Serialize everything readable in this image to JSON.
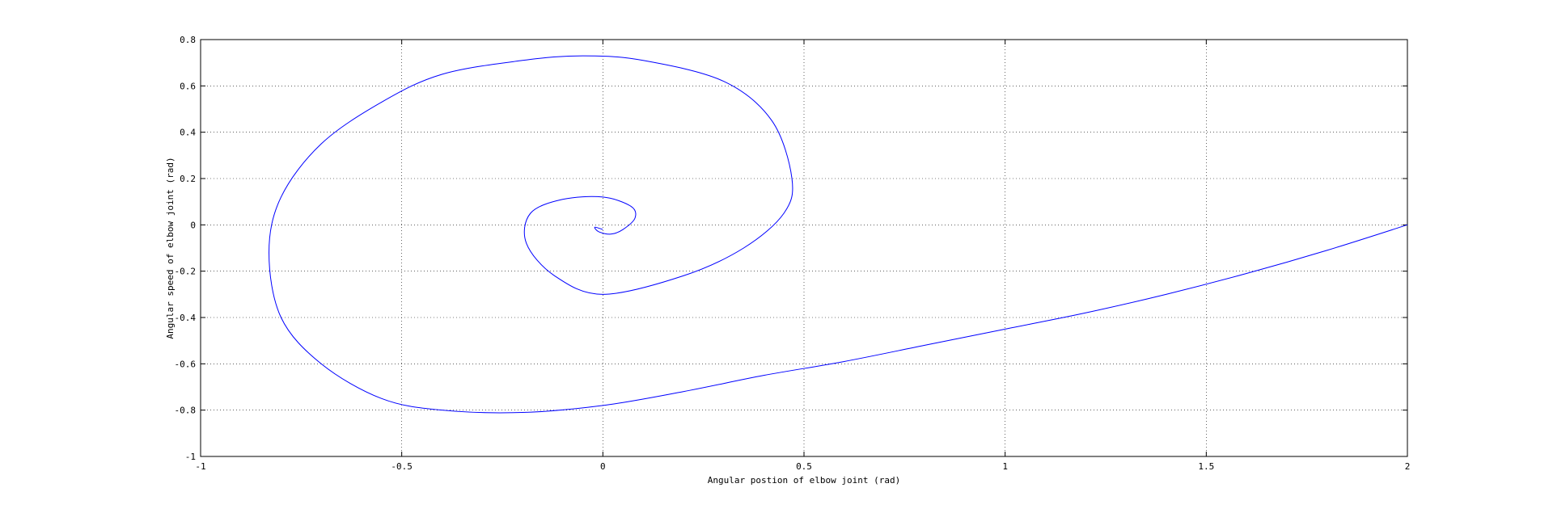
{
  "chart_data": {
    "type": "line",
    "title": "",
    "xlabel": "Angular postion of elbow joint (rad)",
    "ylabel": "Angular speed of elbow joint (rad)",
    "xlim": [
      -1,
      2
    ],
    "ylim": [
      -1,
      0.8
    ],
    "xticks": [
      -1,
      -0.5,
      0,
      0.5,
      1,
      1.5,
      2
    ],
    "xtick_labels": [
      "-1",
      "-0.5",
      "0",
      "0.5",
      "1",
      "1.5",
      "2"
    ],
    "yticks": [
      -1,
      -0.8,
      -0.6,
      -0.4,
      -0.2,
      0,
      0.2,
      0.4,
      0.6,
      0.8
    ],
    "ytick_labels": [
      "-1",
      "-0.8",
      "-0.6",
      "-0.4",
      "-0.2",
      "0",
      "0.2",
      "0.4",
      "0.6",
      "0.8"
    ],
    "grid": true,
    "line_color": "#0000ff",
    "series": [
      {
        "x": [
          2.0,
          1.8,
          1.6,
          1.4,
          1.2,
          1.0,
          0.8,
          0.6,
          0.4,
          0.2,
          0.0,
          -0.2,
          -0.4,
          -0.55,
          -0.7,
          -0.8,
          -0.83,
          -0.8,
          -0.7,
          -0.55,
          -0.4,
          -0.2,
          -0.05,
          0.1,
          0.3,
          0.42,
          0.47,
          0.45,
          0.35,
          0.2,
          0.0,
          -0.12,
          -0.19,
          -0.18,
          -0.1,
          0.0,
          0.07,
          0.08,
          0.05,
          0.02,
          -0.01,
          -0.02,
          0.0
        ],
        "y": [
          0.0,
          -0.11,
          -0.21,
          -0.3,
          -0.38,
          -0.45,
          -0.52,
          -0.59,
          -0.65,
          -0.72,
          -0.78,
          -0.81,
          -0.8,
          -0.75,
          -0.6,
          -0.4,
          -0.12,
          0.12,
          0.35,
          0.53,
          0.65,
          0.71,
          0.73,
          0.71,
          0.62,
          0.45,
          0.2,
          0.05,
          -0.1,
          -0.22,
          -0.3,
          -0.22,
          -0.08,
          0.05,
          0.11,
          0.12,
          0.08,
          0.03,
          -0.02,
          -0.04,
          -0.03,
          -0.01,
          -0.02
        ]
      }
    ]
  }
}
